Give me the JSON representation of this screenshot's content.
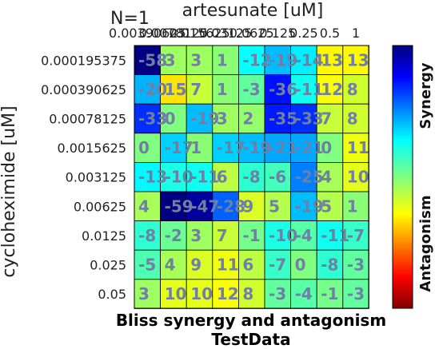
{
  "chart_data": {
    "type": "heatmap",
    "title": "N=1",
    "xlabel": "artesunate [uM]",
    "ylabel": "cycloheximide [uM]",
    "x_ticks": [
      "0.00390625",
      "0.0078125",
      "0.015625",
      "0.03125",
      "0.0625",
      "0.125",
      "0.25",
      "0.5",
      "1"
    ],
    "y_ticks": [
      "0.000195375",
      "0.000390625",
      "0.00078125",
      "0.0015625",
      "0.003125",
      "0.00625",
      "0.0125",
      "0.025",
      "0.05"
    ],
    "values": [
      [
        -58,
        3,
        3,
        1,
        -12,
        -19,
        -14,
        13,
        13
      ],
      [
        -20,
        15,
        7,
        1,
        -3,
        -36,
        -11,
        12,
        8
      ],
      [
        -33,
        0,
        -19,
        3,
        2,
        -35,
        -33,
        7,
        8
      ],
      [
        0,
        -17,
        1,
        -17,
        -19,
        -21,
        -21,
        0,
        11
      ],
      [
        -13,
        -10,
        -11,
        6,
        -8,
        -6,
        -25,
        4,
        10
      ],
      [
        4,
        -59,
        -47,
        -28,
        9,
        5,
        -19,
        5,
        1
      ],
      [
        -8,
        -2,
        3,
        7,
        -1,
        -10,
        -4,
        -11,
        -7
      ],
      [
        -5,
        4,
        9,
        11,
        6,
        -7,
        0,
        -8,
        -3
      ],
      [
        3,
        10,
        10,
        12,
        8,
        -3,
        -4,
        -1,
        -3
      ]
    ],
    "cell_labels": [
      [
        "-58",
        "3",
        "3",
        "1",
        "-12",
        "-19",
        "-14",
        "13",
        "13"
      ],
      [
        "-20",
        "15",
        "7",
        "1",
        "-3",
        "-36",
        "-11",
        "12",
        "8"
      ],
      [
        "-33",
        "0",
        "-19",
        "3",
        "2",
        "-35",
        "-33",
        "7",
        "8"
      ],
      [
        "0",
        "-17",
        "1",
        "-17",
        "-19",
        "-21",
        "-21",
        "0",
        "11"
      ],
      [
        "-13",
        "-10",
        "-11",
        "6",
        "-8",
        "-6",
        "-25",
        "4",
        "10"
      ],
      [
        "4",
        "-59",
        "-47",
        "-28",
        "9",
        "5",
        "-19",
        "5",
        "1"
      ],
      [
        "-8",
        "-2",
        "3",
        "7",
        "-1",
        "-10",
        "-4",
        "-11",
        "-7"
      ],
      [
        "-5",
        "4",
        "9",
        "11",
        "6",
        "-7",
        "0",
        "-8",
        "-3"
      ],
      [
        "3",
        "10",
        "10",
        "12",
        "8",
        "-3",
        "-4",
        "-1",
        "-3"
      ]
    ],
    "colorbar": {
      "colormap": "jet",
      "range": [
        -50,
        50
      ],
      "top_label": "Synergy",
      "bottom_label": "Antagonism"
    },
    "footer_lines": [
      "Bliss synergy and antagonism",
      "TestData"
    ]
  }
}
